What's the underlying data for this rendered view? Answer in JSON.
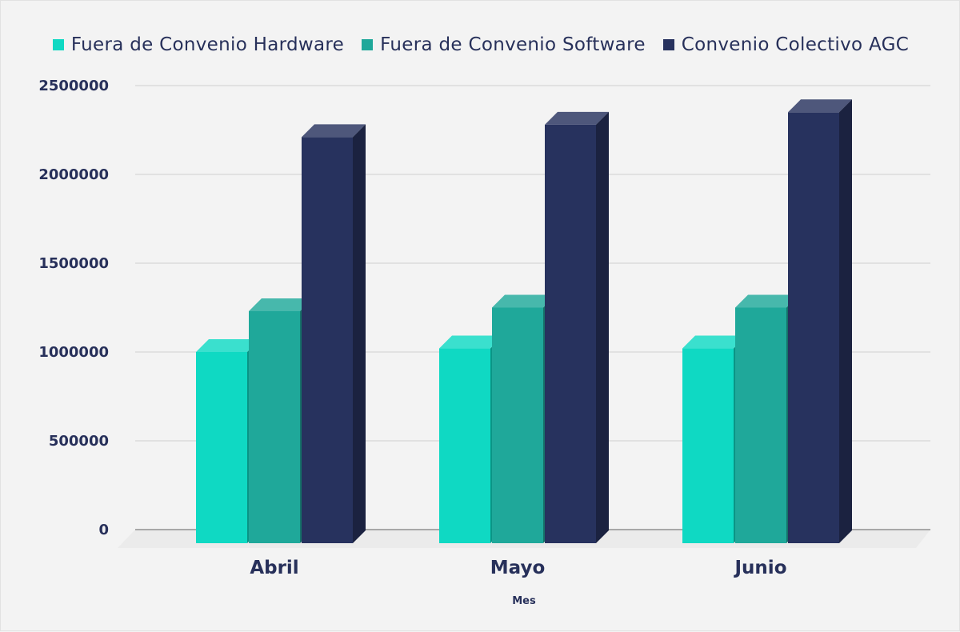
{
  "chart_data": {
    "type": "bar",
    "title": "",
    "xlabel": "Mes",
    "ylabel": "",
    "categories": [
      "Abril",
      "Mayo",
      "Junio"
    ],
    "series": [
      {
        "name": "Fuera de Convenio Hardware",
        "values": [
          1000000,
          1020000,
          1020000
        ],
        "color": "#0fd9c3"
      },
      {
        "name": "Fuera de Convenio Software",
        "values": [
          1230000,
          1250000,
          1250000
        ],
        "color": "#1fa89a"
      },
      {
        "name": "Convenio Colectivo AGC",
        "values": [
          2210000,
          2280000,
          2350000
        ],
        "color": "#27325e"
      }
    ],
    "ylim": [
      0,
      2500000
    ],
    "yticks": [
      "0",
      "500000",
      "1000000",
      "1500000",
      "2000000",
      "2500000"
    ],
    "grid": true,
    "legend_position": "top",
    "style": "3d"
  }
}
